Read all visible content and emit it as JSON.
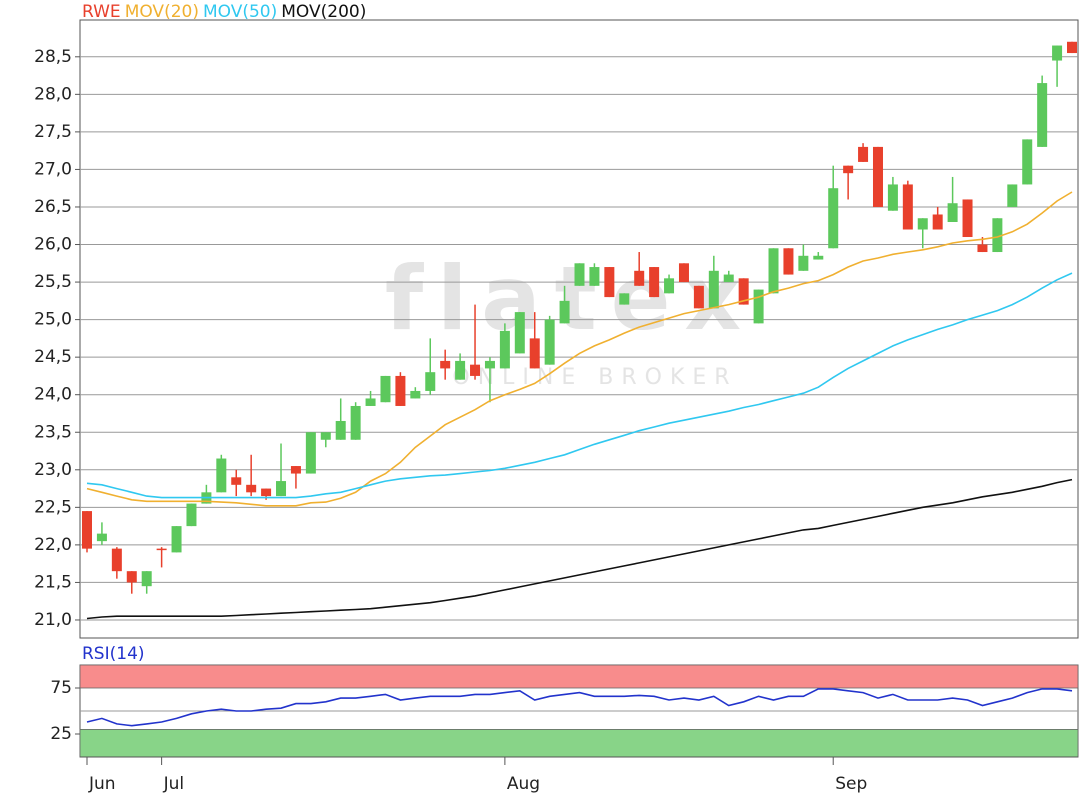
{
  "chart_data": [
    {
      "type": "candlestick",
      "name": "RWE",
      "color_up": "#5cc85c",
      "color_down": "#e8402c",
      "categories": [
        "Jun",
        null,
        null,
        null,
        null,
        "Jul",
        null,
        null,
        null,
        null,
        null,
        null,
        null,
        null,
        null,
        null,
        null,
        null,
        null,
        null,
        null,
        null,
        null,
        null,
        null,
        null,
        null,
        null,
        "Aug",
        null,
        null,
        null,
        null,
        null,
        null,
        null,
        null,
        null,
        null,
        null,
        null,
        null,
        null,
        null,
        null,
        null,
        null,
        null,
        null,
        null,
        "Sep",
        null,
        null,
        null,
        null,
        null,
        null,
        null,
        null,
        null,
        null,
        null,
        null,
        null,
        null,
        null,
        null
      ],
      "open": [
        22.45,
        22.05,
        21.95,
        21.65,
        21.45,
        21.95,
        21.9,
        22.25,
        22.55,
        22.7,
        22.9,
        22.8,
        22.75,
        22.65,
        23.05,
        22.95,
        23.4,
        23.4,
        23.4,
        23.85,
        23.9,
        24.25,
        23.95,
        24.05,
        24.45,
        24.2,
        24.4,
        24.35,
        24.35,
        24.55,
        24.75,
        24.4,
        24.95,
        25.45,
        25.45,
        25.7,
        25.2,
        25.65,
        25.7,
        25.35,
        25.75,
        25.45,
        25.15,
        25.5,
        25.55,
        24.95,
        25.35,
        25.95,
        25.65,
        25.8,
        25.95,
        27.05,
        27.3,
        27.3,
        26.45,
        26.8,
        26.2,
        26.4,
        26.3,
        26.6,
        26.0,
        25.9,
        26.5,
        26.8,
        27.3,
        28.45,
        28.7
      ],
      "high": [
        22.45,
        22.3,
        21.97,
        21.65,
        21.65,
        21.97,
        22.25,
        22.55,
        22.8,
        23.2,
        23.0,
        23.2,
        22.75,
        23.35,
        23.05,
        23.5,
        23.5,
        23.95,
        23.9,
        24.05,
        24.25,
        24.3,
        24.1,
        24.75,
        24.6,
        24.55,
        25.2,
        24.5,
        24.95,
        25.1,
        25.1,
        25.05,
        25.45,
        25.75,
        25.75,
        25.7,
        25.35,
        25.9,
        25.7,
        25.6,
        25.75,
        25.45,
        25.85,
        25.65,
        25.55,
        25.4,
        25.95,
        25.95,
        26.0,
        25.9,
        27.05,
        27.05,
        27.35,
        27.3,
        26.9,
        26.85,
        26.35,
        26.5,
        26.9,
        26.6,
        26.1,
        26.35,
        26.8,
        27.4,
        28.25,
        28.65,
        28.7
      ],
      "low": [
        21.9,
        22.0,
        21.55,
        21.35,
        21.35,
        21.7,
        21.9,
        22.25,
        22.55,
        22.7,
        22.65,
        22.65,
        22.6,
        22.65,
        22.75,
        22.95,
        23.3,
        23.4,
        23.4,
        23.85,
        23.9,
        23.85,
        23.95,
        24.0,
        24.2,
        24.2,
        24.2,
        23.9,
        24.35,
        24.55,
        24.35,
        24.4,
        24.95,
        25.45,
        25.45,
        25.3,
        25.2,
        25.45,
        25.3,
        25.35,
        25.5,
        25.15,
        25.15,
        25.5,
        25.2,
        24.95,
        25.35,
        25.6,
        25.65,
        25.8,
        25.95,
        26.6,
        27.1,
        26.5,
        26.45,
        26.2,
        25.95,
        26.2,
        26.3,
        26.1,
        25.9,
        25.9,
        26.5,
        26.8,
        27.3,
        28.1,
        28.55
      ],
      "close": [
        21.95,
        22.15,
        21.65,
        21.5,
        21.65,
        21.93,
        22.25,
        22.55,
        22.7,
        23.15,
        22.8,
        22.7,
        22.65,
        22.85,
        22.95,
        23.5,
        23.5,
        23.65,
        23.85,
        23.95,
        24.25,
        23.85,
        24.05,
        24.3,
        24.35,
        24.45,
        24.25,
        24.45,
        24.85,
        25.1,
        24.35,
        25.0,
        25.25,
        25.75,
        25.7,
        25.3,
        25.35,
        25.45,
        25.3,
        25.55,
        25.5,
        25.15,
        25.65,
        25.6,
        25.2,
        25.4,
        25.95,
        25.6,
        25.85,
        25.85,
        26.75,
        26.95,
        27.1,
        26.5,
        26.8,
        26.2,
        26.35,
        26.2,
        26.55,
        26.1,
        25.9,
        26.35,
        26.8,
        27.4,
        28.15,
        28.65,
        28.55
      ],
      "series": [
        {
          "name": "MOV(20)",
          "color": "#f0b030",
          "values": [
            22.75,
            22.7,
            22.65,
            22.6,
            22.58,
            22.58,
            22.58,
            22.58,
            22.58,
            22.57,
            22.56,
            22.54,
            22.52,
            22.52,
            22.52,
            22.56,
            22.57,
            22.62,
            22.7,
            22.85,
            22.95,
            23.1,
            23.3,
            23.45,
            23.6,
            23.7,
            23.8,
            23.92,
            24.0,
            24.07,
            24.15,
            24.28,
            24.42,
            24.55,
            24.65,
            24.73,
            24.82,
            24.9,
            24.96,
            25.02,
            25.08,
            25.12,
            25.16,
            25.2,
            25.25,
            25.3,
            25.37,
            25.42,
            25.48,
            25.52,
            25.6,
            25.7,
            25.78,
            25.82,
            25.87,
            25.9,
            25.93,
            25.97,
            26.02,
            26.05,
            26.07,
            26.1,
            26.17,
            26.27,
            26.42,
            26.58,
            26.7
          ]
        },
        {
          "name": "MOV(50)",
          "color": "#30c8f0",
          "values": [
            22.82,
            22.8,
            22.75,
            22.7,
            22.65,
            22.63,
            22.63,
            22.63,
            22.63,
            22.63,
            22.63,
            22.63,
            22.63,
            22.63,
            22.63,
            22.65,
            22.68,
            22.7,
            22.75,
            22.8,
            22.85,
            22.88,
            22.9,
            22.92,
            22.93,
            22.95,
            22.97,
            22.99,
            23.02,
            23.06,
            23.1,
            23.15,
            23.2,
            23.27,
            23.34,
            23.4,
            23.46,
            23.52,
            23.57,
            23.62,
            23.66,
            23.7,
            23.74,
            23.78,
            23.83,
            23.87,
            23.92,
            23.97,
            24.02,
            24.1,
            24.23,
            24.35,
            24.45,
            24.55,
            24.65,
            24.73,
            24.8,
            24.87,
            24.93,
            25.0,
            25.06,
            25.12,
            25.2,
            25.3,
            25.42,
            25.53,
            25.62
          ]
        },
        {
          "name": "MOV(200)",
          "color": "#111111",
          "values": [
            21.02,
            21.04,
            21.05,
            21.05,
            21.05,
            21.05,
            21.05,
            21.05,
            21.05,
            21.05,
            21.06,
            21.07,
            21.08,
            21.09,
            21.1,
            21.11,
            21.12,
            21.13,
            21.14,
            21.15,
            21.17,
            21.19,
            21.21,
            21.23,
            21.26,
            21.29,
            21.32,
            21.36,
            21.4,
            21.44,
            21.48,
            21.52,
            21.56,
            21.6,
            21.64,
            21.68,
            21.72,
            21.76,
            21.8,
            21.84,
            21.88,
            21.92,
            21.96,
            22.0,
            22.04,
            22.08,
            22.12,
            22.16,
            22.2,
            22.22,
            22.26,
            22.3,
            22.34,
            22.38,
            22.42,
            22.46,
            22.5,
            22.53,
            22.56,
            22.6,
            22.64,
            22.67,
            22.7,
            22.74,
            22.78,
            22.83,
            22.87
          ]
        }
      ],
      "ylim": [
        20.76,
        28.99
      ],
      "yticks": [
        {
          "value": 21,
          "label": "21,0"
        },
        {
          "value": 21.5,
          "label": "21,5"
        },
        {
          "value": 22,
          "label": "22,0"
        },
        {
          "value": 22.5,
          "label": "22,5"
        },
        {
          "value": 23,
          "label": "23,0"
        },
        {
          "value": 23.5,
          "label": "23,5"
        },
        {
          "value": 24,
          "label": "24,0"
        },
        {
          "value": 24.5,
          "label": "24,5"
        },
        {
          "value": 25,
          "label": "25,0"
        },
        {
          "value": 25.5,
          "label": "25,5"
        },
        {
          "value": 26,
          "label": "26,0"
        },
        {
          "value": 26.5,
          "label": "26,5"
        },
        {
          "value": 27,
          "label": "27,0"
        },
        {
          "value": 27.5,
          "label": "27,5"
        },
        {
          "value": 28,
          "label": "28,0"
        },
        {
          "value": 28.5,
          "label": "28,5"
        }
      ],
      "grid": true,
      "watermark": {
        "brand": "flatex",
        "tagline": "ONLINE BROKER"
      }
    },
    {
      "type": "line",
      "series": [
        {
          "name": "RSI(14)",
          "color": "#2233cc",
          "values": [
            38,
            42,
            36,
            34,
            36,
            38,
            42,
            47,
            50,
            52,
            50,
            50,
            52,
            53,
            58,
            58,
            60,
            64,
            64,
            66,
            68,
            62,
            64,
            66,
            66,
            66,
            68,
            68,
            70,
            72,
            62,
            66,
            68,
            70,
            66,
            66,
            66,
            67,
            66,
            62,
            64,
            62,
            66,
            56,
            60,
            66,
            62,
            66,
            66,
            74,
            74,
            72,
            70,
            64,
            68,
            62,
            62,
            62,
            64,
            62,
            56,
            60,
            64,
            70,
            74,
            74,
            72
          ]
        }
      ],
      "ylim": [
        0,
        100
      ],
      "yticks": [
        25,
        75
      ],
      "bands": [
        {
          "from": 75,
          "to": 100,
          "color": "#f88c8c"
        },
        {
          "from": 0,
          "to": 30,
          "color": "#88d488"
        }
      ],
      "reference_lines": [
        50
      ]
    }
  ]
}
